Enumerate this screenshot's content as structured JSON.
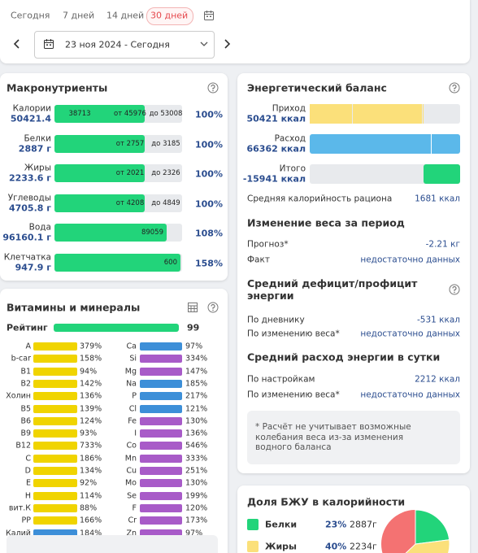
{
  "period": {
    "tabs": [
      "Сегодня",
      "7 дней",
      "14 дней",
      "30 дней"
    ],
    "active_tab": 3,
    "date": "23 ноя 2024 - Сегодня"
  },
  "macros": {
    "title": "Макронутриенты",
    "rows": [
      {
        "name": "Калории",
        "amount": "50421.4",
        "bar_value": "38713",
        "min": "от 45976",
        "max": "до 53008",
        "percent": "100%"
      },
      {
        "name": "Белки",
        "amount": "2887 г",
        "min": "от 2757",
        "max": "до 3185",
        "percent": "100%"
      },
      {
        "name": "Жиры",
        "amount": "2233.6 г",
        "min": "от 2021",
        "max": "до 2326",
        "percent": "100%"
      },
      {
        "name": "Углеводы",
        "amount": "4705.8 г",
        "min": "от 4208",
        "max": "до 4849",
        "percent": "100%"
      },
      {
        "name": "Вода",
        "amount": "96160.1 г",
        "bar_value": "89059",
        "percent": "108%"
      },
      {
        "name": "Клетчатка",
        "amount": "947.9 г",
        "bar_value": "600",
        "percent": "158%"
      }
    ]
  },
  "vitamins": {
    "title": "Витамины и минералы",
    "rating_label": "Рейтинг",
    "rating": "99",
    "left": [
      {
        "name": "A",
        "percent": "379%",
        "color": "#f0d400"
      },
      {
        "name": "b-car",
        "percent": "158%",
        "color": "#f0d400"
      },
      {
        "name": "B1",
        "percent": "94%",
        "color": "#f0d400"
      },
      {
        "name": "B2",
        "percent": "142%",
        "color": "#f0d400"
      },
      {
        "name": "Холин",
        "percent": "136%",
        "color": "#f0d400"
      },
      {
        "name": "B5",
        "percent": "139%",
        "color": "#f0d400"
      },
      {
        "name": "B6",
        "percent": "124%",
        "color": "#f0d400"
      },
      {
        "name": "B9",
        "percent": "93%",
        "color": "#f0d400"
      },
      {
        "name": "B12",
        "percent": "733%",
        "color": "#f0d400"
      },
      {
        "name": "C",
        "percent": "186%",
        "color": "#f0d400"
      },
      {
        "name": "D",
        "percent": "134%",
        "color": "#f0d400"
      },
      {
        "name": "E",
        "percent": "92%",
        "color": "#f0d400"
      },
      {
        "name": "H",
        "percent": "114%",
        "color": "#f0d400"
      },
      {
        "name": "вит.К",
        "percent": "88%",
        "color": "#f0d400"
      },
      {
        "name": "PP",
        "percent": "166%",
        "color": "#f0d400"
      },
      {
        "name": "Калий",
        "percent": "184%",
        "color": "#3d8fd8"
      }
    ],
    "right": [
      {
        "name": "Ca",
        "percent": "97%",
        "color": "#3d8fd8"
      },
      {
        "name": "Si",
        "percent": "334%",
        "color": "#a85bc8"
      },
      {
        "name": "Mg",
        "percent": "147%",
        "color": "#a85bc8"
      },
      {
        "name": "Na",
        "percent": "185%",
        "color": "#3d8fd8"
      },
      {
        "name": "P",
        "percent": "217%",
        "color": "#3d8fd8"
      },
      {
        "name": "Cl",
        "percent": "121%",
        "color": "#3d8fd8"
      },
      {
        "name": "Fe",
        "percent": "130%",
        "color": "#a85bc8"
      },
      {
        "name": "I",
        "percent": "136%",
        "color": "#a85bc8"
      },
      {
        "name": "Co",
        "percent": "546%",
        "color": "#a85bc8"
      },
      {
        "name": "Mn",
        "percent": "333%",
        "color": "#a85bc8"
      },
      {
        "name": "Cu",
        "percent": "251%",
        "color": "#a85bc8"
      },
      {
        "name": "Mo",
        "percent": "130%",
        "color": "#a85bc8"
      },
      {
        "name": "Se",
        "percent": "199%",
        "color": "#a85bc8"
      },
      {
        "name": "F",
        "percent": "120%",
        "color": "#a85bc8"
      },
      {
        "name": "Cr",
        "percent": "173%",
        "color": "#a85bc8"
      },
      {
        "name": "Zn",
        "percent": "97%",
        "color": "#a85bc8"
      }
    ]
  },
  "energy": {
    "title": "Энергетический баланс",
    "bars": [
      {
        "name": "Приход",
        "amount": "50421 ккал"
      },
      {
        "name": "Расход",
        "amount": "66362 ккал"
      },
      {
        "name": "Итого",
        "amount": "-15941 ккал"
      }
    ],
    "avg_label": "Средняя калорийность рациона",
    "avg_value": "1681 ккал",
    "sections": [
      {
        "title": "Изменение веса за период",
        "rows": [
          [
            "Прогноз*",
            "-2.21 кг"
          ],
          [
            "Факт",
            "недостаточно данных"
          ]
        ]
      },
      {
        "title": "Средний дефицит/профицит энергии",
        "rows": [
          [
            "По дневнику",
            "-531 ккал"
          ],
          [
            "По изменению веса*",
            "недостаточно данных"
          ]
        ]
      },
      {
        "title": "Средний расход энергии в сутки",
        "rows": [
          [
            "По настройкам",
            "2212 ккал"
          ],
          [
            "По изменению веса*",
            "недостаточно данных"
          ]
        ]
      }
    ],
    "note": "* Расчёт не учитывает возможные колебания веса из-за изменения водного баланса"
  },
  "bju": {
    "title": "Доля БЖУ в калорийности",
    "rows": [
      {
        "name": "Белки",
        "percent": 23,
        "percent_label": "23%",
        "grams": "2887г",
        "color": "#22d47a"
      },
      {
        "name": "Жиры",
        "percent": 40,
        "percent_label": "40%",
        "grams": "2234г",
        "color": "#fbe07a"
      }
    ]
  }
}
